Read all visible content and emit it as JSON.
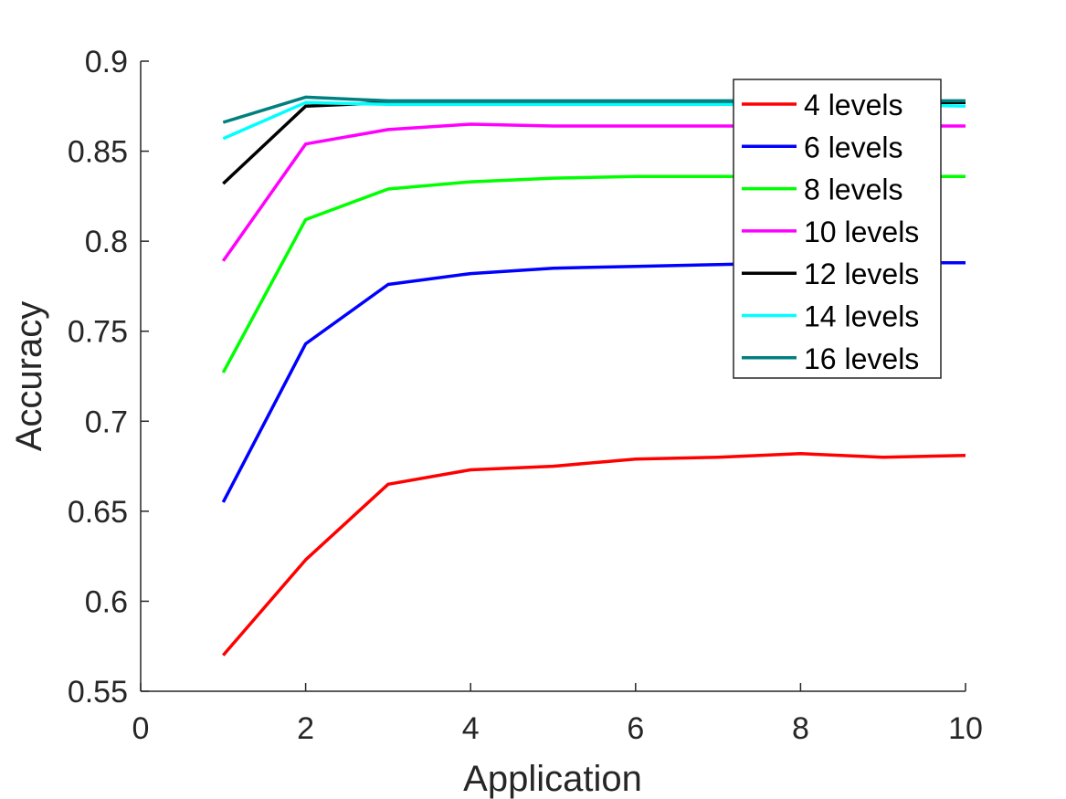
{
  "chart_data": {
    "type": "line",
    "title": "",
    "xlabel": "Application",
    "ylabel": "Accuracy",
    "xlim": [
      0,
      10
    ],
    "ylim": [
      0.55,
      0.9
    ],
    "xticks": [
      0,
      2,
      4,
      6,
      8,
      10
    ],
    "xtick_labels": [
      "0",
      "2",
      "4",
      "6",
      "8",
      "10"
    ],
    "yticks": [
      0.55,
      0.6,
      0.65,
      0.7,
      0.75,
      0.8,
      0.85,
      0.9
    ],
    "ytick_labels": [
      "0.55",
      "0.6",
      "0.65",
      "0.7",
      "0.75",
      "0.8",
      "0.85",
      "0.9"
    ],
    "grid": false,
    "legend_position": "top-right",
    "x": [
      1,
      2,
      3,
      4,
      5,
      6,
      7,
      8,
      9,
      10
    ],
    "series": [
      {
        "name": "4 levels",
        "color": "#ff0000",
        "values": [
          0.57,
          0.623,
          0.665,
          0.673,
          0.675,
          0.679,
          0.68,
          0.682,
          0.68,
          0.681
        ]
      },
      {
        "name": "6 levels",
        "color": "#0000ff",
        "values": [
          0.655,
          0.743,
          0.776,
          0.782,
          0.785,
          0.786,
          0.787,
          0.788,
          0.788,
          0.788
        ]
      },
      {
        "name": "8 levels",
        "color": "#00ff00",
        "values": [
          0.727,
          0.812,
          0.829,
          0.833,
          0.835,
          0.836,
          0.836,
          0.836,
          0.836,
          0.836
        ]
      },
      {
        "name": "10 levels",
        "color": "#ff00ff",
        "values": [
          0.789,
          0.854,
          0.862,
          0.865,
          0.864,
          0.864,
          0.864,
          0.864,
          0.864,
          0.864
        ]
      },
      {
        "name": "12 levels",
        "color": "#000000",
        "values": [
          0.832,
          0.875,
          0.877,
          0.877,
          0.877,
          0.877,
          0.877,
          0.877,
          0.877,
          0.877
        ]
      },
      {
        "name": "14 levels",
        "color": "#00ffff",
        "values": [
          0.857,
          0.877,
          0.876,
          0.876,
          0.876,
          0.876,
          0.876,
          0.876,
          0.876,
          0.875
        ]
      },
      {
        "name": "16 levels",
        "color": "#008080",
        "values": [
          0.866,
          0.88,
          0.878,
          0.878,
          0.878,
          0.878,
          0.878,
          0.878,
          0.878,
          0.878
        ]
      }
    ]
  }
}
